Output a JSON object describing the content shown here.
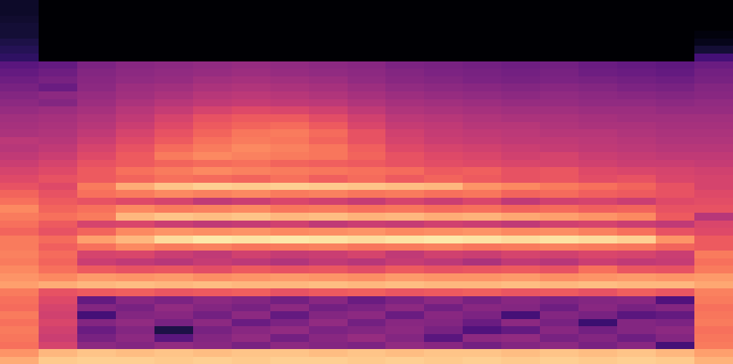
{
  "chart_data": {
    "type": "heatmap",
    "color": "magma",
    "tick_labels": false,
    "clim": [
      -80,
      0
    ],
    "cells": [
      [
        -14,
        -9,
        -8,
        -8,
        -9,
        -8,
        -9,
        -8,
        -8,
        -9,
        -8,
        -9,
        -8,
        -9,
        -8,
        -9,
        -8,
        -9,
        -13
      ],
      [
        -18,
        -12,
        -10,
        -11,
        -10,
        -11,
        -10,
        -10,
        -11,
        -10,
        -11,
        -10,
        -10,
        -11,
        -10,
        -11,
        -10,
        -12,
        -16
      ],
      [
        -24,
        -34,
        -48,
        -50,
        -47,
        -49,
        -52,
        -48,
        -50,
        -51,
        -47,
        -49,
        -53,
        -50,
        -48,
        -52,
        -49,
        -62,
        -22
      ],
      [
        -23,
        -36,
        -52,
        -48,
        -58,
        -50,
        -47,
        -53,
        -49,
        -46,
        -50,
        -58,
        -48,
        -47,
        -52,
        -50,
        -54,
        -50,
        -23
      ],
      [
        -22,
        -35,
        -55,
        -50,
        -70,
        -52,
        -49,
        -47,
        -51,
        -50,
        -48,
        -52,
        -60,
        -56,
        -49,
        -53,
        -50,
        -48,
        -24
      ],
      [
        -24,
        -33,
        -50,
        -47,
        -52,
        -48,
        -55,
        -51,
        -47,
        -53,
        -49,
        -50,
        -55,
        -48,
        -52,
        -64,
        -50,
        -51,
        -22
      ],
      [
        -22,
        -35,
        -62,
        -50,
        -49,
        -53,
        -48,
        -56,
        -50,
        -48,
        -55,
        -49,
        -51,
        -62,
        -50,
        -52,
        -58,
        -56,
        -23
      ],
      [
        -25,
        -34,
        -50,
        -52,
        -47,
        -50,
        -52,
        -48,
        -53,
        -51,
        -48,
        -53,
        -49,
        -50,
        -54,
        -49,
        -52,
        -50,
        -24
      ],
      [
        -24,
        -32,
        -56,
        -49,
        -51,
        -48,
        -50,
        -53,
        -49,
        -55,
        -51,
        -48,
        -52,
        -49,
        -51,
        -50,
        -49,
        -60,
        -22
      ],
      [
        -22,
        -30,
        -28,
        -27,
        -29,
        -28,
        -27,
        -30,
        -28,
        -27,
        -29,
        -28,
        -27,
        -29,
        -28,
        -30,
        -27,
        -29,
        -21
      ],
      [
        -16,
        -14,
        -12,
        -11,
        -12,
        -11,
        -12,
        -12,
        -11,
        -12,
        -11,
        -12,
        -12,
        -11,
        -12,
        -11,
        -12,
        -12,
        -15
      ],
      [
        -18,
        -20,
        -17,
        -18,
        -17,
        -19,
        -18,
        -17,
        -18,
        -19,
        -17,
        -18,
        -18,
        -17,
        -19,
        -18,
        -17,
        -18,
        -17
      ],
      [
        -20,
        -24,
        -28,
        -30,
        -29,
        -31,
        -28,
        -30,
        -29,
        -31,
        -28,
        -30,
        -29,
        -28,
        -30,
        -24,
        -29,
        -30,
        -22
      ],
      [
        -22,
        -26,
        -36,
        -38,
        -40,
        -37,
        -39,
        -41,
        -38,
        -40,
        -37,
        -39,
        -42,
        -38,
        -40,
        -36,
        -38,
        -37,
        -24
      ],
      [
        -21,
        -25,
        -34,
        -33,
        -36,
        -38,
        -35,
        -37,
        -36,
        -34,
        -38,
        -35,
        -36,
        -34,
        -35,
        -33,
        -34,
        -36,
        -22
      ],
      [
        -22,
        -27,
        -24,
        -20,
        -22,
        -21,
        -23,
        -22,
        -21,
        -23,
        -22,
        -21,
        -23,
        -22,
        -21,
        -22,
        -23,
        -26,
        -28
      ],
      [
        -22,
        -25,
        -16,
        -12,
        -6,
        -4,
        -5,
        -4,
        -5,
        -6,
        -5,
        -4,
        -5,
        -6,
        -5,
        -6,
        -8,
        -18,
        -28
      ],
      [
        -26,
        -30,
        -26,
        -20,
        -18,
        -19,
        -18,
        -20,
        -19,
        -18,
        -20,
        -19,
        -18,
        -20,
        -19,
        -21,
        -24,
        -30,
        -32
      ],
      [
        -24,
        -28,
        -34,
        -33,
        -36,
        -38,
        -37,
        -35,
        -38,
        -36,
        -37,
        -35,
        -36,
        -38,
        -35,
        -34,
        -36,
        -38,
        -33
      ],
      [
        -22,
        -24,
        -22,
        -12,
        -10,
        -11,
        -10,
        -12,
        -11,
        -13,
        -12,
        -14,
        -13,
        -15,
        -16,
        -18,
        -20,
        -28,
        -40
      ],
      [
        -20,
        -26,
        -24,
        -20,
        -22,
        -21,
        -20,
        -23,
        -22,
        -24,
        -23,
        -25,
        -24,
        -26,
        -25,
        -27,
        -26,
        -30,
        -30
      ],
      [
        -24,
        -28,
        -30,
        -32,
        -34,
        -38,
        -36,
        -33,
        -35,
        -37,
        -34,
        -36,
        -33,
        -38,
        -35,
        -34,
        -36,
        -32,
        -31
      ],
      [
        -26,
        -30,
        -24,
        -22,
        -20,
        -21,
        -20,
        -22,
        -21,
        -23,
        -22,
        -24,
        -23,
        -26,
        -25,
        -27,
        -28,
        -30,
        -32
      ],
      [
        -30,
        -32,
        -22,
        -14,
        -10,
        -8,
        -9,
        -8,
        -9,
        -10,
        -11,
        -12,
        -18,
        -20,
        -22,
        -24,
        -26,
        -30,
        -34
      ],
      [
        -32,
        -30,
        -28,
        -26,
        -24,
        -25,
        -26,
        -24,
        -27,
        -25,
        -28,
        -26,
        -28,
        -30,
        -29,
        -31,
        -30,
        -33,
        -34
      ],
      [
        -34,
        -32,
        -28,
        -24,
        -22,
        -20,
        -21,
        -22,
        -23,
        -24,
        -25,
        -28,
        -27,
        -30,
        -29,
        -32,
        -33,
        -34,
        -35
      ],
      [
        -36,
        -34,
        -30,
        -28,
        -26,
        -25,
        -24,
        -26,
        -27,
        -28,
        -30,
        -31,
        -32,
        -33,
        -34,
        -35,
        -36,
        -36,
        -37
      ],
      [
        -38,
        -36,
        -32,
        -28,
        -22,
        -20,
        -21,
        -22,
        -23,
        -26,
        -30,
        -32,
        -33,
        -35,
        -34,
        -36,
        -37,
        -38,
        -38
      ],
      [
        -40,
        -38,
        -34,
        -30,
        -25,
        -22,
        -20,
        -21,
        -23,
        -27,
        -32,
        -34,
        -35,
        -36,
        -37,
        -38,
        -39,
        -40,
        -40
      ],
      [
        -39,
        -40,
        -36,
        -32,
        -28,
        -24,
        -22,
        -23,
        -26,
        -30,
        -34,
        -36,
        -37,
        -38,
        -38,
        -39,
        -40,
        -41,
        -41
      ],
      [
        -42,
        -41,
        -38,
        -34,
        -30,
        -26,
        -23,
        -22,
        -25,
        -30,
        -35,
        -37,
        -38,
        -39,
        -40,
        -40,
        -41,
        -42,
        -42
      ],
      [
        -43,
        -42,
        -40,
        -36,
        -32,
        -28,
        -26,
        -25,
        -28,
        -33,
        -37,
        -38,
        -40,
        -40,
        -41,
        -42,
        -42,
        -43,
        -43
      ],
      [
        -44,
        -43,
        -41,
        -38,
        -34,
        -30,
        -28,
        -28,
        -31,
        -35,
        -39,
        -40,
        -41,
        -42,
        -42,
        -43,
        -44,
        -44,
        -44
      ],
      [
        -46,
        -45,
        -43,
        -40,
        -37,
        -34,
        -32,
        -33,
        -35,
        -38,
        -41,
        -42,
        -43,
        -44,
        -44,
        -45,
        -45,
        -46,
        -46
      ],
      [
        -48,
        -50,
        -45,
        -42,
        -40,
        -38,
        -37,
        -38,
        -39,
        -41,
        -43,
        -44,
        -45,
        -46,
        -46,
        -47,
        -47,
        -48,
        -47
      ],
      [
        -50,
        -48,
        -46,
        -44,
        -42,
        -40,
        -39,
        -40,
        -41,
        -43,
        -45,
        -46,
        -47,
        -48,
        -47,
        -48,
        -49,
        -50,
        -49
      ],
      [
        -52,
        -55,
        -48,
        -45,
        -44,
        -42,
        -41,
        -42,
        -43,
        -45,
        -47,
        -48,
        -49,
        -50,
        -49,
        -50,
        -51,
        -52,
        -50
      ],
      [
        -54,
        -52,
        -49,
        -47,
        -46,
        -44,
        -43,
        -44,
        -45,
        -47,
        -49,
        -50,
        -51,
        -52,
        -51,
        -52,
        -53,
        -54,
        -52
      ],
      [
        -56,
        -54,
        -50,
        -48,
        -47,
        -46,
        -45,
        -46,
        -47,
        -48,
        -50,
        -51,
        -52,
        -53,
        -52,
        -54,
        -55,
        -56,
        -53
      ],
      [
        -58,
        -56,
        -51,
        -49,
        -48,
        -47,
        -46,
        -47,
        -48,
        -49,
        -51,
        -52,
        -53,
        -54,
        -53,
        -55,
        -56,
        -57,
        -55
      ],
      [
        -66,
        -80,
        -80,
        -80,
        -80,
        -80,
        -80,
        -80,
        -80,
        -80,
        -80,
        -80,
        -80,
        -80,
        -80,
        -80,
        -80,
        -80,
        -62
      ],
      [
        -68,
        -80,
        -80,
        -80,
        -80,
        -80,
        -80,
        -80,
        -80,
        -80,
        -80,
        -80,
        -80,
        -80,
        -80,
        -80,
        -80,
        -80,
        -72
      ],
      [
        -70,
        -80,
        -80,
        -80,
        -80,
        -80,
        -80,
        -80,
        -80,
        -80,
        -80,
        -80,
        -80,
        -80,
        -80,
        -80,
        -80,
        -80,
        -76
      ],
      [
        -72,
        -80,
        -80,
        -80,
        -80,
        -80,
        -80,
        -80,
        -80,
        -80,
        -80,
        -80,
        -80,
        -80,
        -80,
        -80,
        -80,
        -80,
        -78
      ],
      [
        -72,
        -80,
        -80,
        -80,
        -80,
        -80,
        -80,
        -80,
        -80,
        -80,
        -80,
        -80,
        -80,
        -80,
        -80,
        -80,
        -80,
        -80,
        -80
      ],
      [
        -73,
        -80,
        -80,
        -80,
        -80,
        -80,
        -80,
        -80,
        -80,
        -80,
        -80,
        -80,
        -80,
        -80,
        -80,
        -80,
        -80,
        -80,
        -80
      ],
      [
        -74,
        -80,
        -80,
        -80,
        -80,
        -80,
        -80,
        -80,
        -80,
        -80,
        -80,
        -80,
        -80,
        -80,
        -80,
        -80,
        -80,
        -80,
        -80
      ],
      [
        -74,
        -80,
        -80,
        -80,
        -80,
        -80,
        -80,
        -80,
        -80,
        -80,
        -80,
        -80,
        -80,
        -80,
        -80,
        -80,
        -80,
        -80,
        -80
      ]
    ]
  }
}
